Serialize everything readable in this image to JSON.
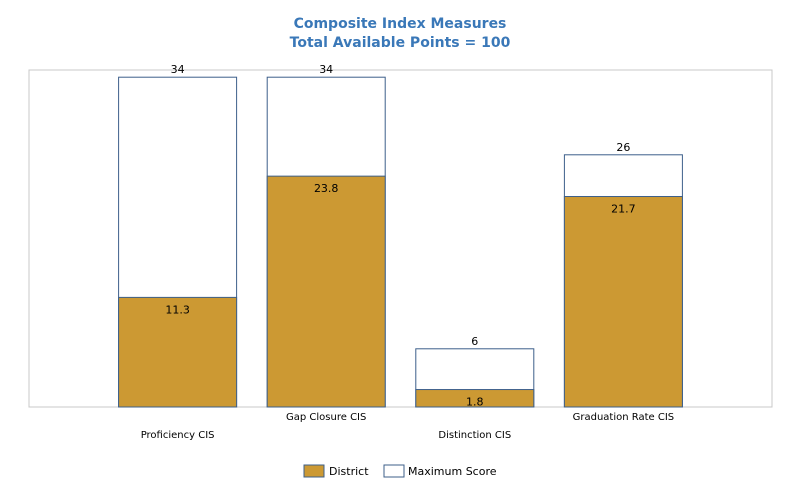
{
  "chart_data": {
    "type": "bar",
    "title": "Composite Index Measures",
    "subtitle": "Total Available Points = 100",
    "categories": [
      "Proficiency CIS",
      "Gap Closure CIS",
      "Distinction CIS",
      "Graduation Rate CIS"
    ],
    "series": [
      {
        "name": "District",
        "values": [
          11.3,
          23.8,
          1.8,
          21.7
        ],
        "color": "#cc9933"
      },
      {
        "name": "Maximum Score",
        "values": [
          34,
          34,
          6,
          26
        ],
        "color": "#ffffff",
        "stroke": "#3d5f8a"
      }
    ],
    "xlabel": "",
    "ylabel": "",
    "ylim": [
      0,
      35
    ],
    "grid": false,
    "legend": "bottom",
    "tick_label_stagger": true
  }
}
